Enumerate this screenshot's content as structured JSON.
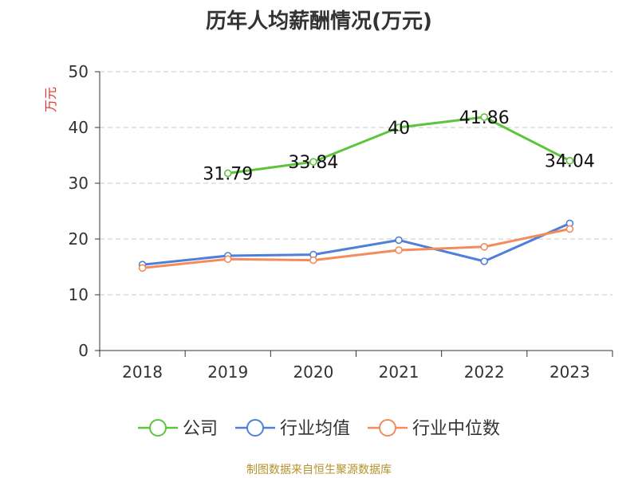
{
  "chart_data": {
    "type": "line",
    "title": "历年人均薪酬情况(万元)",
    "ylabel": "万元",
    "xlabel": "",
    "categories": [
      "2018",
      "2019",
      "2020",
      "2021",
      "2022",
      "2023"
    ],
    "ylim": [
      0,
      50
    ],
    "yticks": [
      0,
      10,
      20,
      30,
      40,
      50
    ],
    "grid": true,
    "legend_position": "bottom",
    "source": "制图数据来自恒生聚源数据库",
    "series": [
      {
        "name": "公司",
        "color": "#5cc53b",
        "values": [
          null,
          31.79,
          33.84,
          40,
          41.86,
          34.04
        ],
        "data_labels": [
          "",
          "31.79",
          "33.84",
          "40",
          "41.86",
          "34.04"
        ]
      },
      {
        "name": "行业均值",
        "color": "#4f7fd8",
        "values": [
          15.4,
          17.0,
          17.2,
          19.8,
          16.0,
          22.8
        ],
        "data_labels": []
      },
      {
        "name": "行业中位数",
        "color": "#f48b5c",
        "values": [
          14.8,
          16.4,
          16.2,
          18.0,
          18.6,
          21.8
        ],
        "data_labels": []
      }
    ]
  }
}
